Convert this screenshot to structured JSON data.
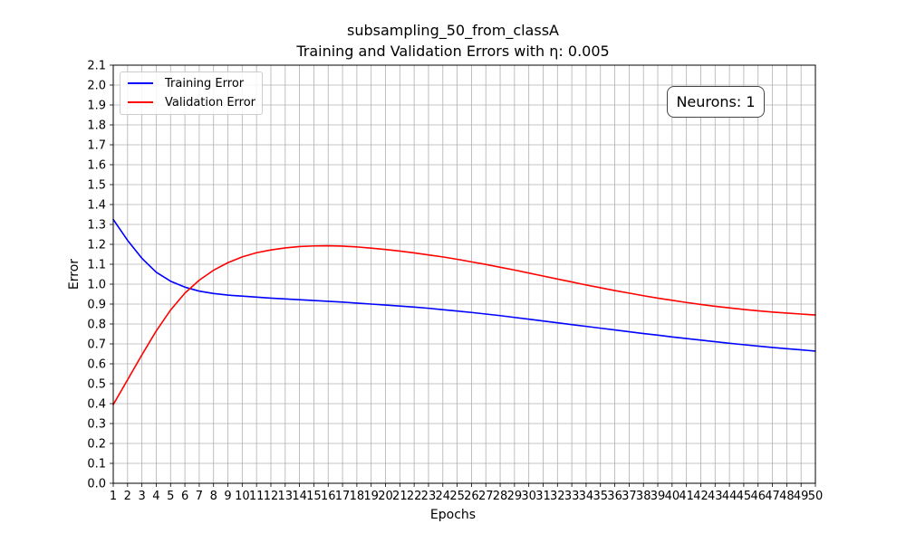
{
  "chart_data": {
    "type": "line",
    "title": "subsampling_50_from_classA",
    "subtitle": "Training and Validation Errors with η: 0.005",
    "xlabel": "Epochs",
    "ylabel": "Error",
    "xlim": [
      1,
      50
    ],
    "ylim": [
      0,
      2.1
    ],
    "x_ticks": [
      1,
      2,
      3,
      4,
      5,
      6,
      7,
      8,
      9,
      10,
      11,
      12,
      13,
      14,
      15,
      16,
      17,
      18,
      19,
      20,
      21,
      22,
      23,
      24,
      25,
      26,
      27,
      28,
      29,
      30,
      31,
      32,
      33,
      34,
      35,
      36,
      37,
      38,
      39,
      40,
      41,
      42,
      43,
      44,
      45,
      46,
      47,
      48,
      49,
      50
    ],
    "y_ticks": [
      "0.0",
      "0.1",
      "0.2",
      "0.3",
      "0.4",
      "0.5",
      "0.6",
      "0.7",
      "0.8",
      "0.9",
      "1.0",
      "1.1",
      "1.2",
      "1.3",
      "1.4",
      "1.5",
      "1.6",
      "1.7",
      "1.8",
      "1.9",
      "2.0",
      "2.1"
    ],
    "grid": true,
    "legend_position": "top-left",
    "annotation": "Neurons: 1",
    "x": [
      1,
      2,
      3,
      4,
      5,
      6,
      7,
      8,
      9,
      10,
      11,
      12,
      13,
      14,
      15,
      16,
      17,
      18,
      19,
      20,
      21,
      22,
      23,
      24,
      25,
      26,
      27,
      28,
      29,
      30,
      31,
      32,
      33,
      34,
      35,
      36,
      37,
      38,
      39,
      40,
      41,
      42,
      43,
      44,
      45,
      46,
      47,
      48,
      49,
      50
    ],
    "series": [
      {
        "name": "Training Error",
        "color": "#0000ff",
        "values": [
          1.325,
          1.22,
          1.13,
          1.06,
          1.015,
          0.985,
          0.965,
          0.953,
          0.945,
          0.94,
          0.935,
          0.93,
          0.926,
          0.922,
          0.918,
          0.914,
          0.91,
          0.905,
          0.9,
          0.895,
          0.89,
          0.885,
          0.879,
          0.872,
          0.865,
          0.858,
          0.85,
          0.842,
          0.833,
          0.824,
          0.815,
          0.806,
          0.797,
          0.788,
          0.779,
          0.77,
          0.761,
          0.752,
          0.744,
          0.735,
          0.727,
          0.719,
          0.711,
          0.703,
          0.696,
          0.689,
          0.682,
          0.676,
          0.67,
          0.664
        ]
      },
      {
        "name": "Validation Error",
        "color": "#ff0000",
        "values": [
          0.395,
          0.52,
          0.645,
          0.765,
          0.87,
          0.955,
          1.02,
          1.07,
          1.108,
          1.137,
          1.158,
          1.172,
          1.182,
          1.189,
          1.192,
          1.193,
          1.191,
          1.187,
          1.181,
          1.174,
          1.166,
          1.157,
          1.147,
          1.137,
          1.125,
          1.112,
          1.099,
          1.085,
          1.071,
          1.056,
          1.041,
          1.026,
          1.011,
          0.996,
          0.982,
          0.968,
          0.955,
          0.942,
          0.93,
          0.919,
          0.908,
          0.898,
          0.889,
          0.881,
          0.873,
          0.866,
          0.86,
          0.855,
          0.85,
          0.845
        ]
      }
    ]
  }
}
